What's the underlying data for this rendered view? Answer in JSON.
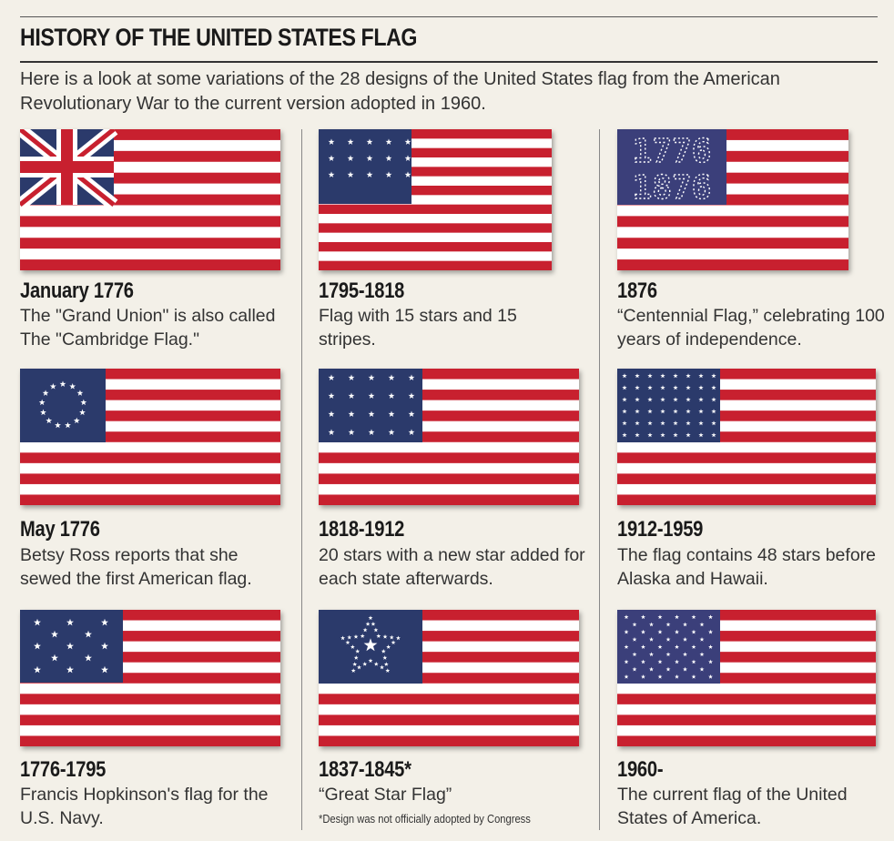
{
  "header": {
    "title": "HISTORY OF THE UNITED STATES FLAG",
    "intro": "Here is a look at some variations of the 28 designs of the United States flag from the American Revolutionary War to the current version adopted in 1960."
  },
  "colors": {
    "red": "#c8202f",
    "white": "#ffffff",
    "blue": "#2b3a6b",
    "background": "#f3f0e8"
  },
  "flags": [
    {
      "year": "January 1776",
      "description": "The \"Grand Union\" is also called The \"Cambridge Flag.\"",
      "canton": "union-jack"
    },
    {
      "year": "1795-1818",
      "description": "Flag with 15 stars and 15 stripes.",
      "canton": "15-stars"
    },
    {
      "year": "1876",
      "description": "“Centennial Flag,” celebrating 100 years of independence.",
      "canton": "1776-1876-stars",
      "canton_text": [
        "1776",
        "1876"
      ]
    },
    {
      "year": "May 1776",
      "description": "Betsy Ross reports that she sewed the first American flag.",
      "canton": "13-star-circle"
    },
    {
      "year": "1818-1912",
      "description": "20 stars with a new star added for each state afterwards.",
      "canton": "20-stars"
    },
    {
      "year": "1912-1959",
      "description": "The flag contains 48 stars before Alaska and Hawaii.",
      "canton": "48-stars"
    },
    {
      "year": "1776-1795",
      "description": "Francis Hopkinson's flag for the U.S. Navy.",
      "canton": "13-stars-rows"
    },
    {
      "year": "1837-1845*",
      "description": "“Great Star Flag”",
      "canton": "great-star",
      "footnote": "*Design was not officially adopted by Congress"
    },
    {
      "year": "1960-",
      "description": "The current flag of the United States of America.",
      "canton": "50-stars"
    }
  ]
}
